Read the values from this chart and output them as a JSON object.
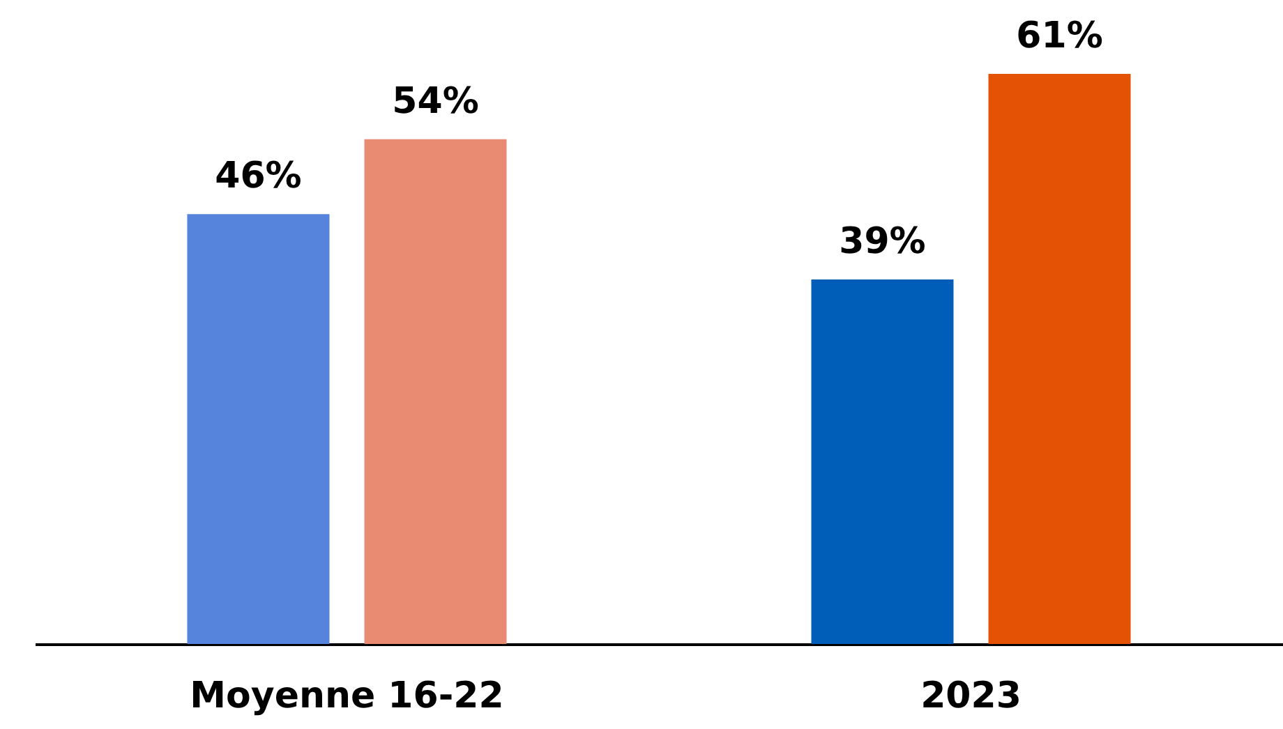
{
  "chart_data": {
    "type": "bar",
    "categories": [
      "Moyenne 16-22",
      "2023"
    ],
    "series": [
      {
        "values": [
          46,
          39
        ],
        "colors": [
          "#5683db",
          "#005eb8"
        ],
        "value_labels": [
          "46%",
          "39%"
        ]
      },
      {
        "values": [
          54,
          61
        ],
        "colors": [
          "#e98a72",
          "#e35205"
        ],
        "value_labels": [
          "54%",
          "61%"
        ]
      }
    ]
  }
}
